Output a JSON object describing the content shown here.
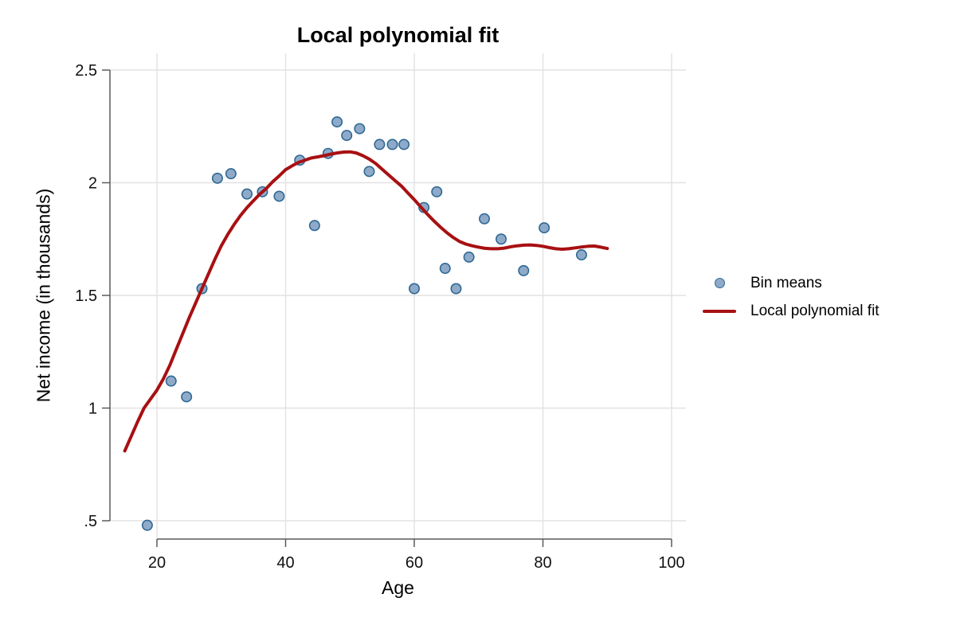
{
  "title": "Local polynomial fit",
  "axes": {
    "x_label": "Age",
    "y_label": "Net income (in thousands)"
  },
  "legend": {
    "items": [
      {
        "swatch": "marker",
        "label": "Bin means"
      },
      {
        "swatch": "line",
        "label": "Local polynomial fit"
      }
    ]
  },
  "colors": {
    "marker_fill": "#8FAAC9",
    "marker_stroke": "#2E6894",
    "fit_line": "#A81012",
    "grid": "#E2E2E2",
    "axis": "#5A5A5A",
    "tick_text": "#111111",
    "background": "#FFFFFF"
  },
  "chart_data": {
    "type": "scatter",
    "title": "Local polynomial fit",
    "xlabel": "Age",
    "ylabel": "Net income (in thousands)",
    "xlim": [
      12.7,
      102.2
    ],
    "ylim": [
      0.41,
      2.57
    ],
    "x_ticks": [
      20,
      40,
      60,
      80,
      100
    ],
    "x_tick_labels": [
      "20",
      "40",
      "60",
      "80",
      "100"
    ],
    "y_ticks": [
      2.5,
      2,
      1.5,
      1,
      0.5
    ],
    "y_tick_labels": [
      "2.5",
      "2",
      "1.5",
      "1",
      ".5"
    ],
    "grid": true,
    "legend_position": "right",
    "series": [
      {
        "name": "Bin means",
        "type": "scatter",
        "points": [
          [
            18.5,
            0.48
          ],
          [
            22.2,
            1.12
          ],
          [
            24.6,
            1.05
          ],
          [
            27.0,
            1.53
          ],
          [
            29.4,
            2.02
          ],
          [
            31.5,
            2.04
          ],
          [
            34.0,
            1.95
          ],
          [
            36.4,
            1.96
          ],
          [
            39.0,
            1.94
          ],
          [
            42.2,
            2.1
          ],
          [
            44.5,
            1.81
          ],
          [
            46.6,
            2.13
          ],
          [
            48.0,
            2.27
          ],
          [
            49.5,
            2.21
          ],
          [
            51.5,
            2.24
          ],
          [
            53.0,
            2.05
          ],
          [
            54.6,
            2.17
          ],
          [
            56.6,
            2.17
          ],
          [
            58.4,
            2.17
          ],
          [
            60.0,
            1.53
          ],
          [
            61.5,
            1.89
          ],
          [
            63.5,
            1.96
          ],
          [
            64.8,
            1.62
          ],
          [
            66.5,
            1.53
          ],
          [
            68.5,
            1.67
          ],
          [
            70.9,
            1.84
          ],
          [
            73.5,
            1.75
          ],
          [
            77.0,
            1.61
          ],
          [
            80.2,
            1.8
          ],
          [
            86.0,
            1.68
          ]
        ]
      },
      {
        "name": "Local polynomial fit",
        "type": "line",
        "points": [
          [
            15,
            0.81
          ],
          [
            16,
            0.875
          ],
          [
            17,
            0.94
          ],
          [
            18,
            1.0
          ],
          [
            19,
            1.04
          ],
          [
            20,
            1.08
          ],
          [
            21,
            1.13
          ],
          [
            22,
            1.19
          ],
          [
            23,
            1.26
          ],
          [
            24,
            1.33
          ],
          [
            25,
            1.4
          ],
          [
            26,
            1.465
          ],
          [
            27,
            1.53
          ],
          [
            28,
            1.595
          ],
          [
            29,
            1.66
          ],
          [
            30,
            1.72
          ],
          [
            31,
            1.77
          ],
          [
            32,
            1.815
          ],
          [
            33,
            1.855
          ],
          [
            34,
            1.89
          ],
          [
            35,
            1.92
          ],
          [
            36,
            1.95
          ],
          [
            37,
            1.975
          ],
          [
            38,
            2.005
          ],
          [
            39,
            2.03
          ],
          [
            40,
            2.058
          ],
          [
            41,
            2.075
          ],
          [
            42,
            2.09
          ],
          [
            43,
            2.1
          ],
          [
            44,
            2.11
          ],
          [
            45,
            2.115
          ],
          [
            46,
            2.12
          ],
          [
            47,
            2.127
          ],
          [
            48,
            2.132
          ],
          [
            49,
            2.136
          ],
          [
            50,
            2.137
          ],
          [
            51,
            2.132
          ],
          [
            52,
            2.12
          ],
          [
            53,
            2.105
          ],
          [
            54,
            2.085
          ],
          [
            55,
            2.06
          ],
          [
            56,
            2.035
          ],
          [
            57,
            2.01
          ],
          [
            58,
            1.985
          ],
          [
            59,
            1.955
          ],
          [
            60,
            1.925
          ],
          [
            61,
            1.893
          ],
          [
            62,
            1.862
          ],
          [
            63,
            1.832
          ],
          [
            64,
            1.805
          ],
          [
            65,
            1.78
          ],
          [
            66,
            1.758
          ],
          [
            67,
            1.74
          ],
          [
            68,
            1.728
          ],
          [
            69,
            1.72
          ],
          [
            70,
            1.714
          ],
          [
            71,
            1.709
          ],
          [
            72,
            1.707
          ],
          [
            73,
            1.707
          ],
          [
            74,
            1.71
          ],
          [
            75,
            1.716
          ],
          [
            76,
            1.72
          ],
          [
            77,
            1.723
          ],
          [
            78,
            1.724
          ],
          [
            79,
            1.722
          ],
          [
            80,
            1.718
          ],
          [
            81,
            1.712
          ],
          [
            82,
            1.707
          ],
          [
            83,
            1.705
          ],
          [
            84,
            1.707
          ],
          [
            85,
            1.711
          ],
          [
            86,
            1.715
          ],
          [
            87,
            1.718
          ],
          [
            88,
            1.719
          ],
          [
            89,
            1.714
          ],
          [
            90,
            1.708
          ]
        ]
      }
    ]
  }
}
